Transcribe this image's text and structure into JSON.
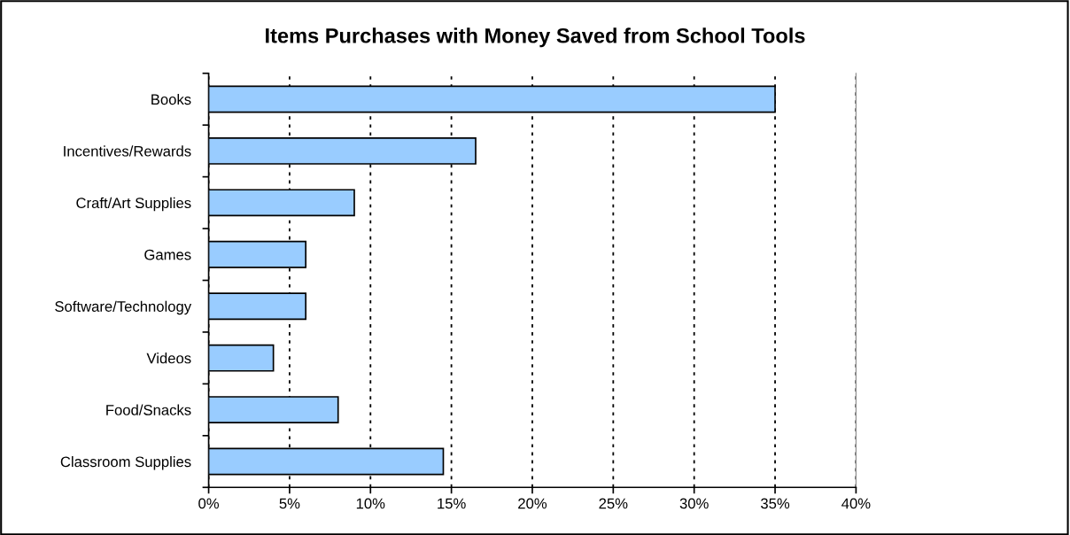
{
  "chart_data": {
    "type": "bar",
    "orientation": "horizontal",
    "title": "Items Purchases with Money Saved from School Tools",
    "categories": [
      "Books",
      "Incentives/Rewards",
      "Craft/Art Supplies",
      "Games",
      "Software/Technology",
      "Videos",
      "Food/Snacks",
      "Classroom Supplies"
    ],
    "values": [
      35,
      16.5,
      9,
      6,
      6,
      4,
      8,
      14.5
    ],
    "color": "#99ccff",
    "xlim": [
      0,
      40
    ],
    "xticks": [
      {
        "value": 0,
        "label": "0%"
      },
      {
        "value": 5,
        "label": "5%"
      },
      {
        "value": 10,
        "label": "10%"
      },
      {
        "value": 15,
        "label": "15%"
      },
      {
        "value": 20,
        "label": "20%"
      },
      {
        "value": 25,
        "label": "25%"
      },
      {
        "value": 30,
        "label": "30%"
      },
      {
        "value": 35,
        "label": "35%"
      },
      {
        "value": 40,
        "label": "40%"
      }
    ],
    "grid": "x",
    "legend": false
  }
}
